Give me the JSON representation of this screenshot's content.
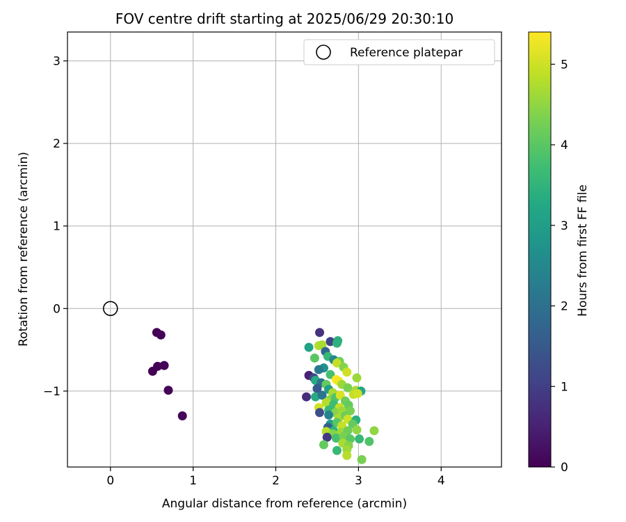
{
  "chart_data": {
    "type": "scatter",
    "title": "FOV centre drift starting at 2025/06/29 20:30:10",
    "xlabel": "Angular distance from reference (arcmin)",
    "ylabel": "Rotation from reference (arcmin)",
    "xlim": [
      -0.52,
      4.73
    ],
    "ylim": [
      -1.92,
      3.35
    ],
    "xticks": [
      "0",
      "1",
      "2",
      "3",
      "4"
    ],
    "yticks": [
      "−1",
      "0",
      "1",
      "2",
      "3"
    ],
    "grid": true,
    "legend": {
      "placement": "top-right",
      "entries": [
        "Reference platepar"
      ]
    },
    "reference_point": {
      "x": 0,
      "y": 0
    },
    "colorbar": {
      "label": "Hours from first FF file",
      "range": [
        0,
        5.4
      ],
      "ticks": [
        "0",
        "1",
        "2",
        "3",
        "4",
        "5"
      ],
      "colormap": "viridis"
    },
    "points": [
      {
        "x": 0.56,
        "y": -0.29,
        "c": 0.0
      },
      {
        "x": 0.61,
        "y": -0.32,
        "c": 0.05
      },
      {
        "x": 0.57,
        "y": -0.7,
        "c": 0.0
      },
      {
        "x": 0.65,
        "y": -0.69,
        "c": 0.05
      },
      {
        "x": 0.51,
        "y": -0.76,
        "c": 0.0
      },
      {
        "x": 0.7,
        "y": -0.99,
        "c": 0.05
      },
      {
        "x": 0.87,
        "y": -1.3,
        "c": 0.1
      },
      {
        "x": 2.53,
        "y": -0.29,
        "c": 0.8
      },
      {
        "x": 2.66,
        "y": -0.4,
        "c": 1.1
      },
      {
        "x": 2.74,
        "y": -0.42,
        "c": 3.5
      },
      {
        "x": 2.75,
        "y": -0.39,
        "c": 3.4
      },
      {
        "x": 2.4,
        "y": -0.47,
        "c": 3.1
      },
      {
        "x": 2.52,
        "y": -0.45,
        "c": 4.8
      },
      {
        "x": 2.56,
        "y": -0.44,
        "c": 4.7
      },
      {
        "x": 2.6,
        "y": -0.52,
        "c": 1.8
      },
      {
        "x": 2.63,
        "y": -0.58,
        "c": 3.6
      },
      {
        "x": 2.47,
        "y": -0.6,
        "c": 4.0
      },
      {
        "x": 2.7,
        "y": -0.62,
        "c": 2.5
      },
      {
        "x": 2.77,
        "y": -0.64,
        "c": 4.2
      },
      {
        "x": 2.74,
        "y": -0.66,
        "c": 4.9
      },
      {
        "x": 2.58,
        "y": -0.72,
        "c": 2.7
      },
      {
        "x": 2.82,
        "y": -0.71,
        "c": 4.4
      },
      {
        "x": 2.52,
        "y": -0.74,
        "c": 2.2
      },
      {
        "x": 2.86,
        "y": -0.77,
        "c": 5.0
      },
      {
        "x": 2.66,
        "y": -0.8,
        "c": 3.8
      },
      {
        "x": 2.4,
        "y": -0.81,
        "c": 0.5
      },
      {
        "x": 2.46,
        "y": -0.84,
        "c": 1.2
      },
      {
        "x": 2.48,
        "y": -0.87,
        "c": 3.3
      },
      {
        "x": 2.55,
        "y": -0.9,
        "c": 2.0
      },
      {
        "x": 2.61,
        "y": -0.92,
        "c": 4.1
      },
      {
        "x": 2.73,
        "y": -0.86,
        "c": 5.4
      },
      {
        "x": 2.76,
        "y": -0.88,
        "c": 5.3
      },
      {
        "x": 2.8,
        "y": -0.92,
        "c": 4.6
      },
      {
        "x": 2.5,
        "y": -0.97,
        "c": 1.5
      },
      {
        "x": 2.64,
        "y": -0.98,
        "c": 3.0
      },
      {
        "x": 2.69,
        "y": -1.02,
        "c": 4.7
      },
      {
        "x": 2.87,
        "y": -0.96,
        "c": 4.3
      },
      {
        "x": 2.98,
        "y": -0.84,
        "c": 4.6
      },
      {
        "x": 2.97,
        "y": -0.99,
        "c": 4.7
      },
      {
        "x": 3.03,
        "y": -1.0,
        "c": 3.2
      },
      {
        "x": 2.94,
        "y": -1.04,
        "c": 4.9
      },
      {
        "x": 2.99,
        "y": -1.03,
        "c": 5.0
      },
      {
        "x": 2.37,
        "y": -1.07,
        "c": 0.7
      },
      {
        "x": 2.48,
        "y": -1.07,
        "c": 3.3
      },
      {
        "x": 2.56,
        "y": -1.05,
        "c": 2.1
      },
      {
        "x": 2.66,
        "y": -1.1,
        "c": 4.5
      },
      {
        "x": 2.72,
        "y": -1.08,
        "c": 3.9
      },
      {
        "x": 2.78,
        "y": -1.05,
        "c": 5.1
      },
      {
        "x": 2.84,
        "y": -1.12,
        "c": 4.2
      },
      {
        "x": 2.61,
        "y": -1.14,
        "c": 4.8
      },
      {
        "x": 2.7,
        "y": -1.16,
        "c": 3.7
      },
      {
        "x": 2.77,
        "y": -1.2,
        "c": 4.9
      },
      {
        "x": 2.88,
        "y": -1.17,
        "c": 4.1
      },
      {
        "x": 2.52,
        "y": -1.2,
        "c": 5.0
      },
      {
        "x": 2.53,
        "y": -1.26,
        "c": 1.3
      },
      {
        "x": 2.64,
        "y": -1.23,
        "c": 3.6
      },
      {
        "x": 2.72,
        "y": -1.26,
        "c": 4.4
      },
      {
        "x": 2.8,
        "y": -1.24,
        "c": 4.6
      },
      {
        "x": 2.9,
        "y": -1.24,
        "c": 4.3
      },
      {
        "x": 2.64,
        "y": -1.29,
        "c": 2.4
      },
      {
        "x": 2.76,
        "y": -1.33,
        "c": 4.7
      },
      {
        "x": 2.84,
        "y": -1.3,
        "c": 4.2
      },
      {
        "x": 2.87,
        "y": -1.34,
        "c": 5.0
      },
      {
        "x": 2.97,
        "y": -1.35,
        "c": 3.4
      },
      {
        "x": 2.66,
        "y": -1.4,
        "c": 3.0
      },
      {
        "x": 2.74,
        "y": -1.38,
        "c": 4.0
      },
      {
        "x": 2.8,
        "y": -1.42,
        "c": 4.9
      },
      {
        "x": 2.93,
        "y": -1.4,
        "c": 4.1
      },
      {
        "x": 2.63,
        "y": -1.44,
        "c": 1.6
      },
      {
        "x": 2.7,
        "y": -1.48,
        "c": 3.5
      },
      {
        "x": 2.61,
        "y": -1.49,
        "c": 4.8
      },
      {
        "x": 2.69,
        "y": -1.52,
        "c": 4.4
      },
      {
        "x": 2.79,
        "y": -1.5,
        "c": 4.6
      },
      {
        "x": 2.87,
        "y": -1.48,
        "c": 4.2
      },
      {
        "x": 2.98,
        "y": -1.47,
        "c": 4.5
      },
      {
        "x": 3.19,
        "y": -1.48,
        "c": 4.5
      },
      {
        "x": 2.62,
        "y": -1.56,
        "c": 0.9
      },
      {
        "x": 2.73,
        "y": -1.57,
        "c": 3.8
      },
      {
        "x": 2.82,
        "y": -1.55,
        "c": 4.3
      },
      {
        "x": 2.9,
        "y": -1.58,
        "c": 4.0
      },
      {
        "x": 3.01,
        "y": -1.58,
        "c": 3.6
      },
      {
        "x": 3.13,
        "y": -1.61,
        "c": 3.9
      },
      {
        "x": 2.58,
        "y": -1.65,
        "c": 4.1
      },
      {
        "x": 2.81,
        "y": -1.63,
        "c": 4.7
      },
      {
        "x": 2.88,
        "y": -1.66,
        "c": 4.4
      },
      {
        "x": 2.74,
        "y": -1.72,
        "c": 3.6
      },
      {
        "x": 2.86,
        "y": -1.71,
        "c": 4.6
      },
      {
        "x": 2.86,
        "y": -1.78,
        "c": 4.8
      },
      {
        "x": 3.04,
        "y": -1.83,
        "c": 4.3
      }
    ]
  }
}
